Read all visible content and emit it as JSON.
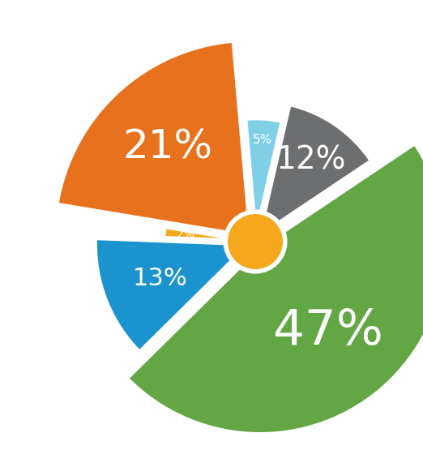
{
  "chart_data": {
    "type": "pie",
    "values": [
      5,
      12,
      47,
      13,
      2,
      21
    ],
    "value_labels": [
      "5%",
      "12%",
      "47%",
      "13%",
      "2%",
      "21%"
    ],
    "colors": [
      "#7fd0e6",
      "#6d6e70",
      "#63a644",
      "#1a93ce",
      "#f5a81c",
      "#e8711e"
    ],
    "data_labels": true
  }
}
